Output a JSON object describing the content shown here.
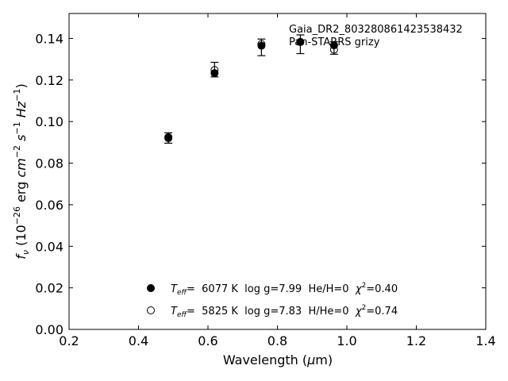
{
  "chart_data": {
    "type": "scatter",
    "title": "",
    "xlabel": "Wavelength (μm)",
    "ylabel": "f_ν (10^-26 erg cm^-2 s^-1 Hz^-1)",
    "xlim": [
      0.2,
      1.4
    ],
    "ylim": [
      0.0,
      0.152
    ],
    "xticks": [
      "0.2",
      "0.4",
      "0.6",
      "0.8",
      "1.0",
      "1.2",
      "1.4"
    ],
    "yticks": [
      "0.00",
      "0.02",
      "0.04",
      "0.06",
      "0.08",
      "0.10",
      "0.12",
      "0.14"
    ],
    "annotation": {
      "line1": "Gaia_DR2_803280861423538432",
      "line2": "Pan-STARRS grizy"
    },
    "observed": {
      "x": [
        0.486,
        0.619,
        0.754,
        0.866,
        0.963
      ],
      "y": [
        0.0921,
        0.125,
        0.1357,
        0.1372,
        0.1354
      ],
      "err": [
        0.0025,
        0.0035,
        0.004,
        0.0045,
        0.003
      ]
    },
    "series": [
      {
        "marker": "filled",
        "legend_label": "T_eff= 6077 K log g=7.99 He/H=0 χ²=0.40",
        "x": [
          0.486,
          0.619,
          0.754,
          0.866,
          0.963
        ],
        "y": [
          0.0925,
          0.1233,
          0.1365,
          0.1383,
          0.1367
        ]
      },
      {
        "marker": "open",
        "legend_label": "T_eff= 5825 K log g=7.83 H/He=0 χ²=0.74",
        "x": [
          0.486,
          0.619,
          0.754,
          0.866,
          0.963
        ],
        "y": [
          0.092,
          0.1248,
          0.1373,
          0.1383,
          0.1346
        ]
      }
    ],
    "legend": [
      {
        "marker": "filled",
        "teff_label": "T",
        "teff_sub": "eff",
        "teff_value": "=  6077 K  log g=7.99  He/H=0  ",
        "chi_label": "χ",
        "chi_sup": "2",
        "chi_value": "=0.40"
      },
      {
        "marker": "open",
        "teff_label": "T",
        "teff_sub": "eff",
        "teff_value": "=  5825 K  log g=7.83  H/He=0  ",
        "chi_label": "χ",
        "chi_sup": "2",
        "chi_value": "=0.74"
      }
    ],
    "legend_position": "lower-center",
    "grid": false
  }
}
